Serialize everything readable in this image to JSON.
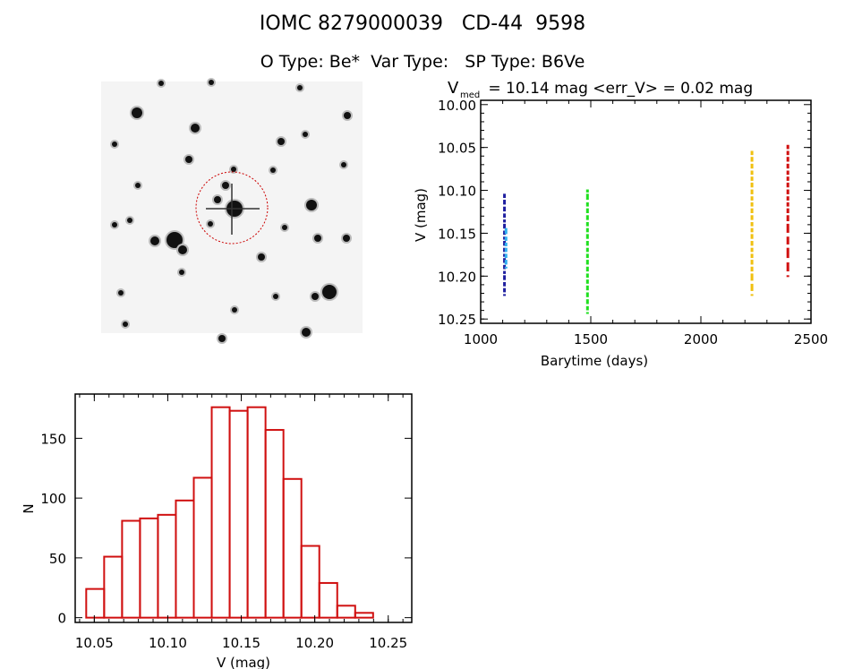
{
  "header": {
    "title": "IOMC 8279000039   CD-44  9598",
    "subtitle": "O Type: Be*  Var Type:   SP Type: B6Ve"
  },
  "colors": {
    "axis": "#000000",
    "histogram": "#d01010",
    "circle": "#cc0000"
  },
  "chart_data": [
    {
      "type": "image",
      "description_label": "finder chart",
      "marker": "dashed red circle around target star"
    },
    {
      "type": "scatter",
      "title_main": "V",
      "title_sub": "med",
      "title_rest": " = 10.14 mag <err_V> = 0.02 mag",
      "xlabel": "Barytime (days)",
      "ylabel": "V (mag)",
      "xlim": [
        1000,
        2500
      ],
      "ylim": [
        10.255,
        9.995
      ],
      "y_reversed": true,
      "xticks": [
        "1000",
        "1500",
        "2000",
        "2500"
      ],
      "yticks": [
        "10.00",
        "10.05",
        "10.10",
        "10.15",
        "10.20",
        "10.25"
      ],
      "series": [
        {
          "color": "#2020a0",
          "x": [
            1108,
            1108,
            1108,
            1108,
            1108,
            1108,
            1108,
            1108,
            1108,
            1108,
            1108,
            1108,
            1108,
            1108,
            1108,
            1108,
            1108,
            1108
          ],
          "y": [
            10.105,
            10.112,
            10.12,
            10.128,
            10.135,
            10.14,
            10.148,
            10.155,
            10.16,
            10.168,
            10.175,
            10.18,
            10.188,
            10.195,
            10.2,
            10.208,
            10.215,
            10.222
          ]
        },
        {
          "color": "#30b0f0",
          "x": [
            1115,
            1115,
            1115,
            1115,
            1115,
            1115,
            1115
          ],
          "y": [
            10.145,
            10.155,
            10.162,
            10.168,
            10.175,
            10.182,
            10.19
          ]
        },
        {
          "color": "#20e020",
          "x": [
            1485,
            1485,
            1485,
            1485,
            1485,
            1485,
            1485,
            1485,
            1485,
            1485,
            1485,
            1485,
            1485,
            1485,
            1485,
            1485,
            1485,
            1485,
            1485,
            1485
          ],
          "y": [
            10.1,
            10.105,
            10.115,
            10.122,
            10.13,
            10.138,
            10.145,
            10.152,
            10.16,
            10.168,
            10.175,
            10.182,
            10.19,
            10.198,
            10.205,
            10.212,
            10.22,
            10.228,
            10.236,
            10.243
          ]
        },
        {
          "color": "#f0c010",
          "x": [
            2232,
            2232,
            2232,
            2232,
            2232,
            2232,
            2232,
            2232,
            2232,
            2232,
            2232,
            2232,
            2232,
            2232,
            2232,
            2232,
            2232,
            2232,
            2232,
            2232,
            2232,
            2232
          ],
          "y": [
            10.055,
            10.062,
            10.07,
            10.078,
            10.085,
            10.092,
            10.1,
            10.108,
            10.115,
            10.122,
            10.13,
            10.138,
            10.145,
            10.152,
            10.16,
            10.168,
            10.175,
            10.182,
            10.19,
            10.198,
            10.21,
            10.222
          ]
        },
        {
          "color": "#d01010",
          "x": [
            2395,
            2395,
            2395,
            2395,
            2395,
            2395,
            2395,
            2395,
            2395,
            2395,
            2395,
            2395,
            2395,
            2395,
            2395,
            2395,
            2395
          ],
          "y": [
            10.048,
            10.055,
            10.062,
            10.07,
            10.078,
            10.085,
            10.092,
            10.1,
            10.108,
            10.115,
            10.122,
            10.13,
            10.14,
            10.155,
            10.168,
            10.185,
            10.2
          ]
        }
      ]
    },
    {
      "type": "bar",
      "subtype": "histogram",
      "xlabel": "V (mag)",
      "ylabel": "N",
      "xlim": [
        10.037,
        10.266
      ],
      "ylim": [
        -4,
        187
      ],
      "xticks": [
        "10.05",
        "10.10",
        "10.15",
        "10.20",
        "10.25"
      ],
      "yticks": [
        "0",
        "50",
        "100",
        "150"
      ],
      "bin_start": 10.0445,
      "bin_width": 0.0122,
      "values": [
        24,
        51,
        81,
        83,
        86,
        98,
        117,
        176,
        173,
        176,
        157,
        116,
        60,
        29,
        10,
        4
      ]
    }
  ]
}
